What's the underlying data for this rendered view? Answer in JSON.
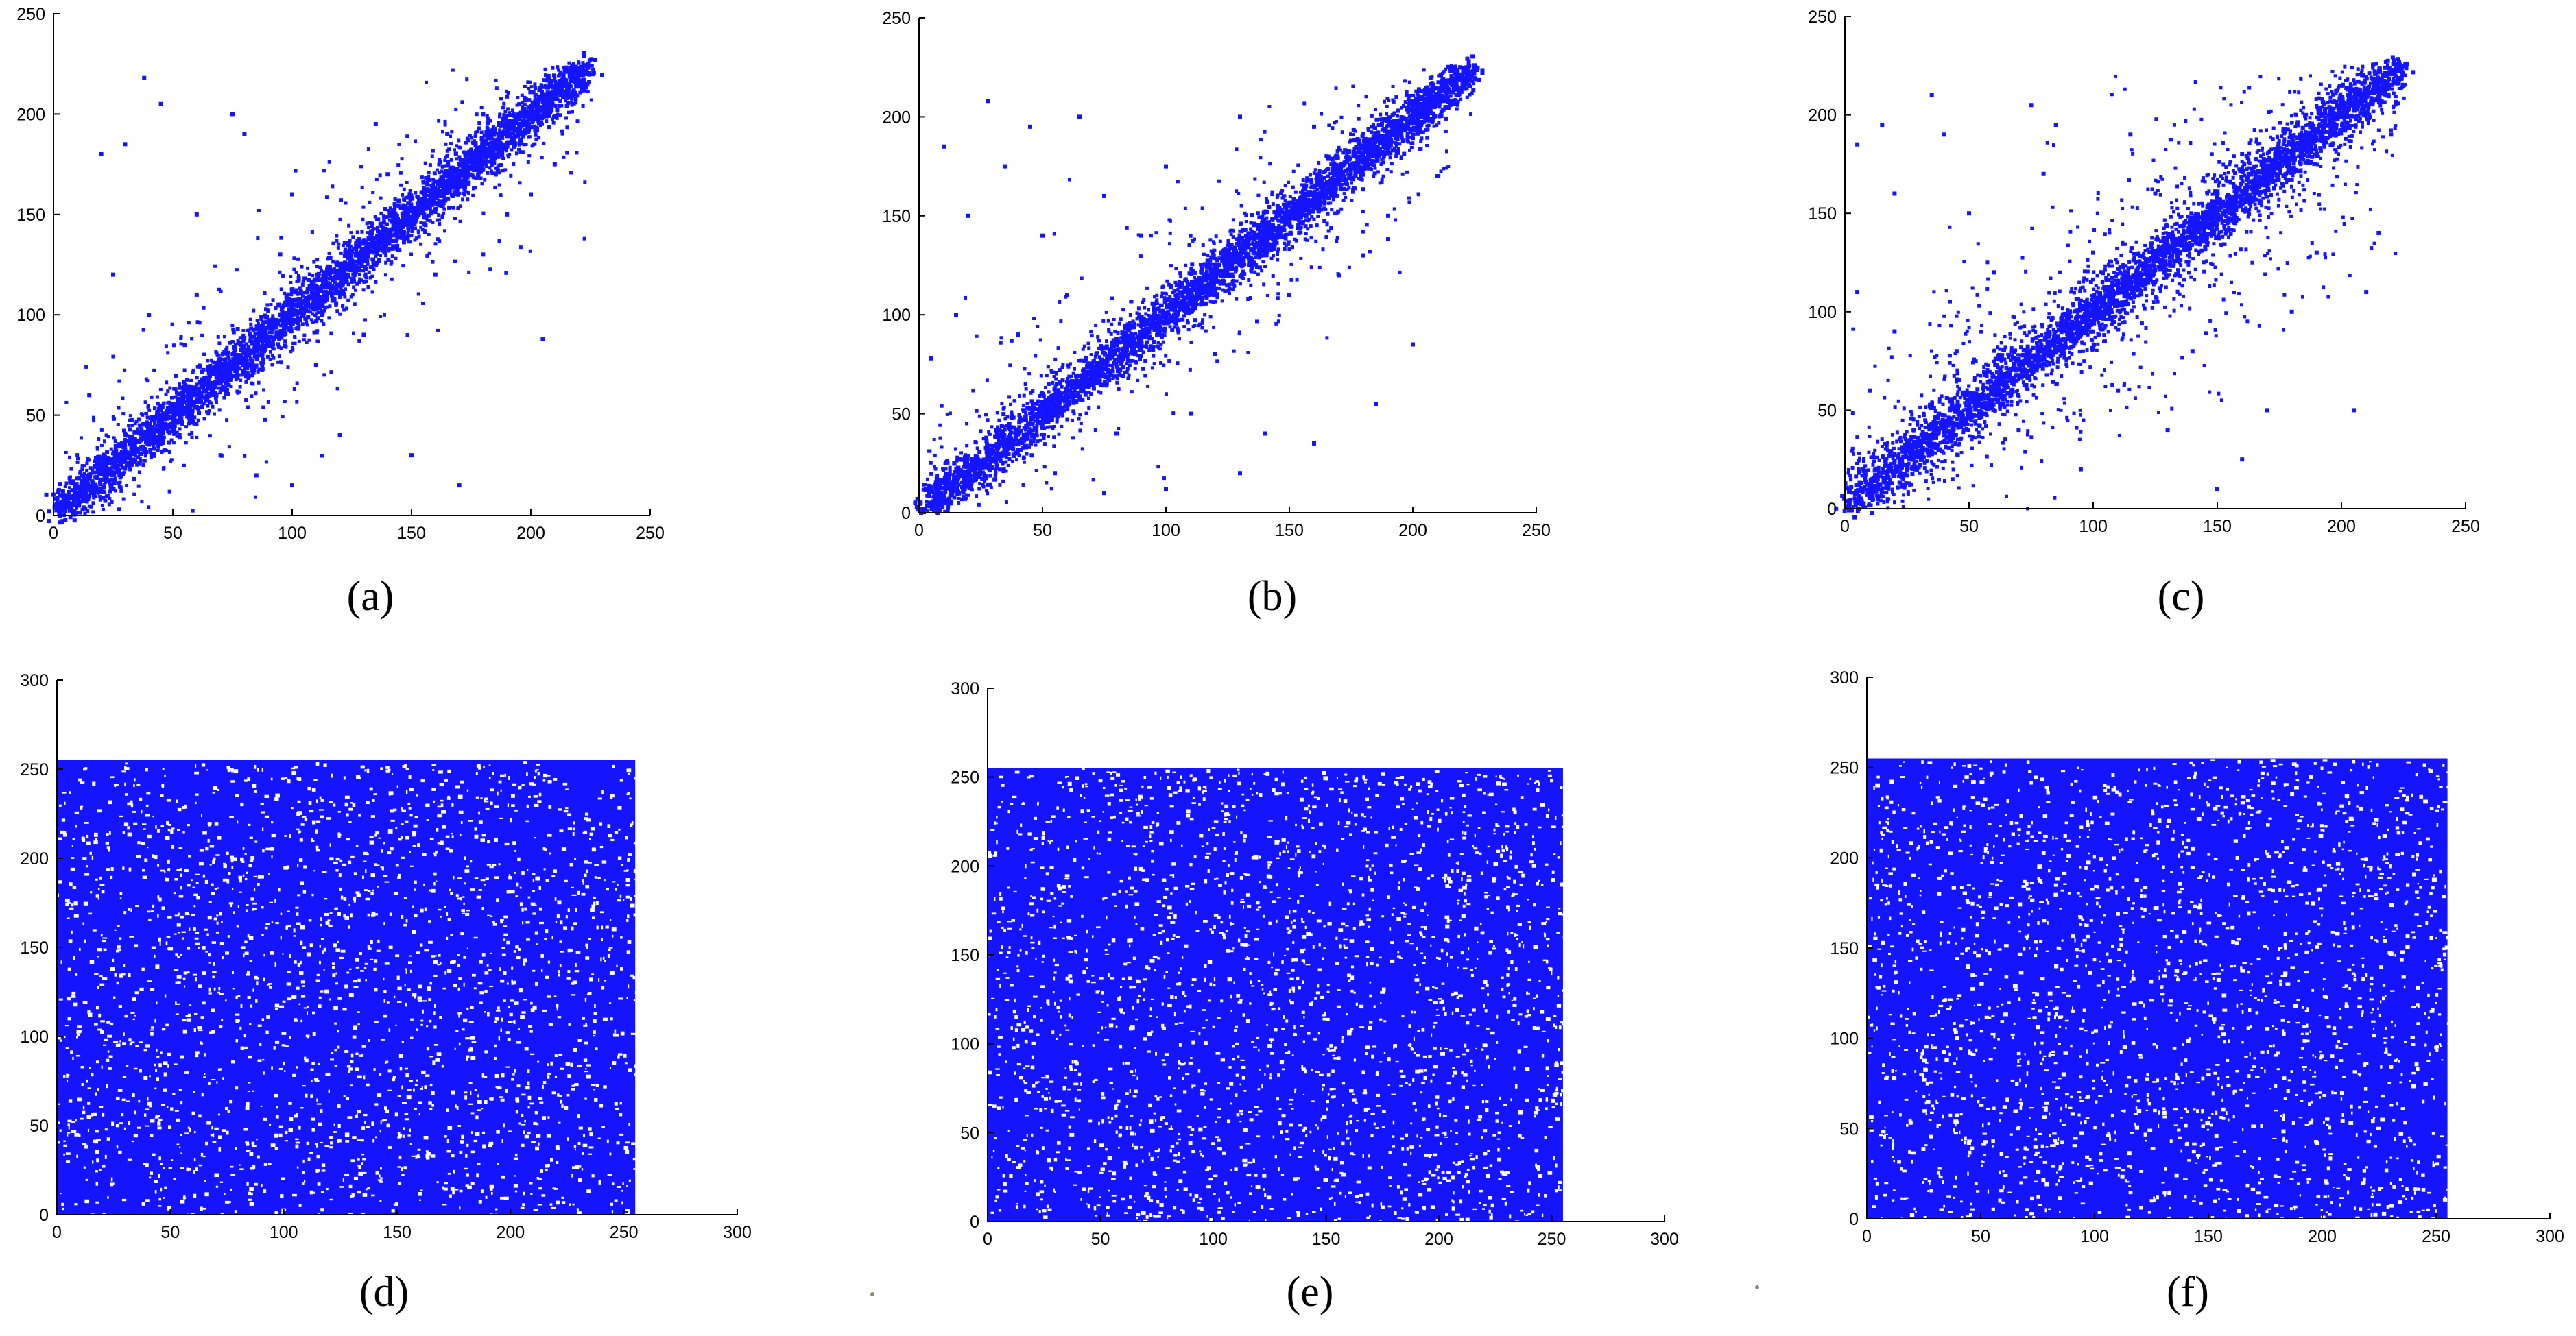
{
  "point_color": "#1414ff",
  "chart_data": [
    {
      "type": "scatter",
      "panel": "(a)",
      "title": "",
      "xlabel": "",
      "ylabel": "",
      "xlim": [
        0,
        250
      ],
      "ylim": [
        0,
        250
      ],
      "xticks": [
        0,
        50,
        100,
        150,
        200,
        250
      ],
      "yticks": [
        0,
        50,
        100,
        150,
        200,
        250
      ],
      "grid": false,
      "legend": false,
      "description_of_distribution": "strong positive correlation along y = x",
      "series": [
        {
          "points": [
            [
              5,
              6
            ],
            [
              12,
              14
            ],
            [
              20,
              22
            ],
            [
              30,
              33
            ],
            [
              40,
              41
            ],
            [
              50,
              52
            ],
            [
              60,
              58
            ],
            [
              70,
              72
            ],
            [
              80,
              81
            ],
            [
              90,
              88
            ],
            [
              100,
              102
            ],
            [
              110,
              109
            ],
            [
              120,
              121
            ],
            [
              130,
              128
            ],
            [
              140,
              142
            ],
            [
              150,
              149
            ],
            [
              160,
              161
            ],
            [
              170,
              168
            ],
            [
              180,
              182
            ],
            [
              190,
              189
            ],
            [
              200,
              201
            ],
            [
              210,
              208
            ],
            [
              220,
              221
            ],
            [
              224,
              225
            ],
            [
              38,
              218
            ],
            [
              45,
              205
            ],
            [
              20,
              180
            ],
            [
              30,
              185
            ],
            [
              75,
              200
            ],
            [
              80,
              190
            ],
            [
              135,
              195
            ],
            [
              100,
              160
            ],
            [
              60,
              150
            ],
            [
              25,
              120
            ],
            [
              40,
              100
            ],
            [
              15,
              60
            ],
            [
              120,
              40
            ],
            [
              150,
              30
            ],
            [
              170,
              15
            ],
            [
              205,
              88
            ],
            [
              100,
              15
            ],
            [
              180,
              130
            ],
            [
              190,
              150
            ],
            [
              160,
              120
            ],
            [
              140,
              170
            ],
            [
              95,
              130
            ],
            [
              60,
              110
            ],
            [
              110,
              75
            ],
            [
              130,
              90
            ],
            [
              200,
              160
            ],
            [
              210,
              175
            ],
            [
              70,
              30
            ],
            [
              85,
              20
            ],
            [
              55,
              85
            ],
            [
              180,
              200
            ],
            [
              165,
              190
            ]
          ]
        }
      ]
    },
    {
      "type": "scatter",
      "panel": "(b)",
      "title": "",
      "xlabel": "",
      "ylabel": "",
      "xlim": [
        0,
        250
      ],
      "ylim": [
        0,
        250
      ],
      "xticks": [
        0,
        50,
        100,
        150,
        200,
        250
      ],
      "yticks": [
        0,
        50,
        100,
        150,
        200,
        250
      ],
      "grid": false,
      "legend": false,
      "description_of_distribution": "strong positive correlation along y = x",
      "series": [
        {
          "points": [
            [
              4,
              5
            ],
            [
              12,
              13
            ],
            [
              20,
              21
            ],
            [
              30,
              31
            ],
            [
              40,
              42
            ],
            [
              50,
              49
            ],
            [
              60,
              61
            ],
            [
              70,
              69
            ],
            [
              80,
              82
            ],
            [
              90,
              90
            ],
            [
              100,
              99
            ],
            [
              110,
              112
            ],
            [
              120,
              119
            ],
            [
              130,
              131
            ],
            [
              140,
              139
            ],
            [
              150,
              152
            ],
            [
              160,
              159
            ],
            [
              170,
              171
            ],
            [
              180,
              179
            ],
            [
              190,
              192
            ],
            [
              200,
              199
            ],
            [
              210,
              211
            ],
            [
              220,
              219
            ],
            [
              225,
              226
            ],
            [
              28,
              208
            ],
            [
              45,
              195
            ],
            [
              65,
              200
            ],
            [
              10,
              185
            ],
            [
              35,
              175
            ],
            [
              20,
              150
            ],
            [
              50,
              140
            ],
            [
              75,
              160
            ],
            [
              100,
              175
            ],
            [
              130,
              200
            ],
            [
              160,
              195
            ],
            [
              5,
              78
            ],
            [
              15,
              100
            ],
            [
              110,
              50
            ],
            [
              140,
              40
            ],
            [
              160,
              35
            ],
            [
              185,
              55
            ],
            [
              200,
              85
            ],
            [
              100,
              12
            ],
            [
              130,
              20
            ],
            [
              75,
              10
            ],
            [
              170,
              120
            ],
            [
              190,
              150
            ],
            [
              150,
              110
            ],
            [
              90,
              140
            ],
            [
              60,
              110
            ],
            [
              120,
              80
            ],
            [
              180,
              130
            ],
            [
              210,
              170
            ],
            [
              40,
              90
            ],
            [
              80,
              40
            ],
            [
              55,
              20
            ]
          ]
        }
      ]
    },
    {
      "type": "scatter",
      "panel": "(c)",
      "title": "",
      "xlabel": "",
      "ylabel": "",
      "xlim": [
        0,
        250
      ],
      "ylim": [
        0,
        250
      ],
      "xticks": [
        0,
        50,
        100,
        150,
        200,
        250
      ],
      "yticks": [
        0,
        50,
        100,
        150,
        200,
        250
      ],
      "grid": false,
      "legend": false,
      "description_of_distribution": "positive correlation along y = x with wider spread",
      "series": [
        {
          "points": [
            [
              5,
              4
            ],
            [
              12,
              14
            ],
            [
              20,
              19
            ],
            [
              30,
              32
            ],
            [
              40,
              39
            ],
            [
              50,
              52
            ],
            [
              60,
              59
            ],
            [
              70,
              71
            ],
            [
              80,
              79
            ],
            [
              90,
              92
            ],
            [
              100,
              99
            ],
            [
              110,
              111
            ],
            [
              120,
              119
            ],
            [
              130,
              132
            ],
            [
              140,
              139
            ],
            [
              150,
              151
            ],
            [
              160,
              159
            ],
            [
              170,
              172
            ],
            [
              180,
              179
            ],
            [
              190,
              191
            ],
            [
              200,
              199
            ],
            [
              210,
              212
            ],
            [
              220,
              221
            ],
            [
              224,
              223
            ],
            [
              35,
              210
            ],
            [
              15,
              195
            ],
            [
              5,
              185
            ],
            [
              40,
              190
            ],
            [
              75,
              205
            ],
            [
              85,
              195
            ],
            [
              115,
              190
            ],
            [
              20,
              160
            ],
            [
              50,
              150
            ],
            [
              80,
              170
            ],
            [
              5,
              110
            ],
            [
              20,
              90
            ],
            [
              10,
              60
            ],
            [
              60,
              120
            ],
            [
              45,
              80
            ],
            [
              110,
              60
            ],
            [
              130,
              40
            ],
            [
              150,
              10
            ],
            [
              160,
              25
            ],
            [
              170,
              50
            ],
            [
              205,
              50
            ],
            [
              210,
              110
            ],
            [
              215,
              140
            ],
            [
              220,
              190
            ],
            [
              190,
              130
            ],
            [
              180,
              100
            ],
            [
              140,
              80
            ],
            [
              100,
              130
            ],
            [
              70,
              40
            ],
            [
              95,
              20
            ],
            [
              125,
              160
            ],
            [
              160,
              180
            ]
          ]
        }
      ]
    },
    {
      "type": "scatter",
      "panel": "(d)",
      "title": "",
      "xlabel": "",
      "ylabel": "",
      "xlim": [
        0,
        300
      ],
      "ylim": [
        0,
        300
      ],
      "xticks": [
        0,
        50,
        100,
        150,
        200,
        250,
        300
      ],
      "yticks": [
        0,
        50,
        100,
        150,
        200,
        250,
        300
      ],
      "grid": false,
      "legend": false,
      "description_of_distribution": "uniform random distribution filling [0,255] x [0,255]",
      "fill_extent": [
        [
          0,
          255
        ],
        [
          0,
          255
        ]
      ]
    },
    {
      "type": "scatter",
      "panel": "(e)",
      "title": "",
      "xlabel": "",
      "ylabel": "",
      "xlim": [
        0,
        300
      ],
      "ylim": [
        0,
        300
      ],
      "xticks": [
        0,
        50,
        100,
        150,
        200,
        250,
        300
      ],
      "yticks": [
        0,
        50,
        100,
        150,
        200,
        250,
        300
      ],
      "grid": false,
      "legend": false,
      "description_of_distribution": "uniform random distribution filling [0,255] x [0,255]",
      "fill_extent": [
        [
          0,
          255
        ],
        [
          0,
          255
        ]
      ]
    },
    {
      "type": "scatter",
      "panel": "(f)",
      "title": "",
      "xlabel": "",
      "ylabel": "",
      "xlim": [
        0,
        300
      ],
      "ylim": [
        0,
        300
      ],
      "xticks": [
        0,
        50,
        100,
        150,
        200,
        250,
        300
      ],
      "yticks": [
        0,
        50,
        100,
        150,
        200,
        250,
        300
      ],
      "grid": false,
      "legend": false,
      "description_of_distribution": "uniform random distribution filling [0,255] x [0,255]",
      "fill_extent": [
        [
          0,
          255
        ],
        [
          0,
          255
        ]
      ]
    }
  ]
}
